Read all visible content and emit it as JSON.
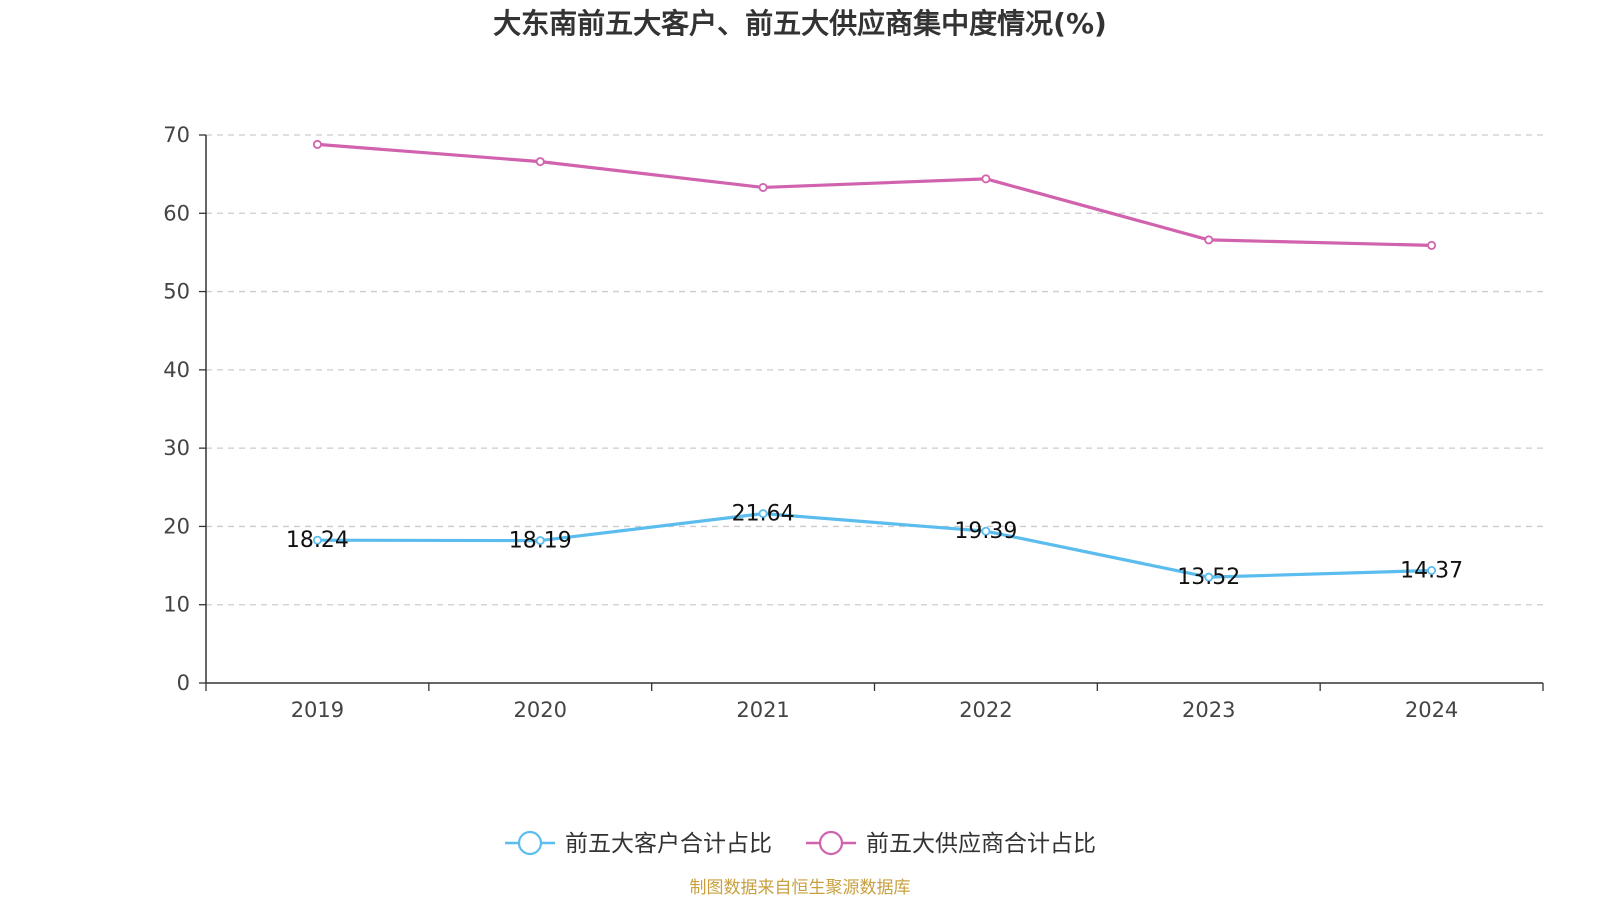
{
  "chart_data": {
    "type": "line",
    "title": "大东南前五大客户、前五大供应商集中度情况(%)",
    "categories": [
      "2019",
      "2020",
      "2021",
      "2022",
      "2023",
      "2024"
    ],
    "series": [
      {
        "name": "前五大客户合计占比",
        "color": "#5bbcee",
        "values": [
          18.24,
          18.19,
          21.64,
          19.39,
          13.52,
          14.37
        ],
        "labels": [
          "18.24",
          "18.19",
          "21.64",
          "19.39",
          "13.52",
          "14.37"
        ]
      },
      {
        "name": "前五大供应商合计占比",
        "color": "#d162ad",
        "values": [
          68.8,
          66.6,
          63.3,
          64.4,
          56.6,
          55.9
        ]
      }
    ],
    "ylim": [
      0,
      70
    ],
    "yticks": [
      0,
      10,
      20,
      30,
      40,
      50,
      60,
      70
    ],
    "ytick_labels": [
      "0",
      "10",
      "20",
      "30",
      "40",
      "50",
      "60",
      "70"
    ],
    "grid": true,
    "legend_position": "bottom-center",
    "xlabel": "",
    "ylabel": ""
  },
  "source_text": "制图数据来自恒生聚源数据库",
  "source_color": "#c8a040"
}
